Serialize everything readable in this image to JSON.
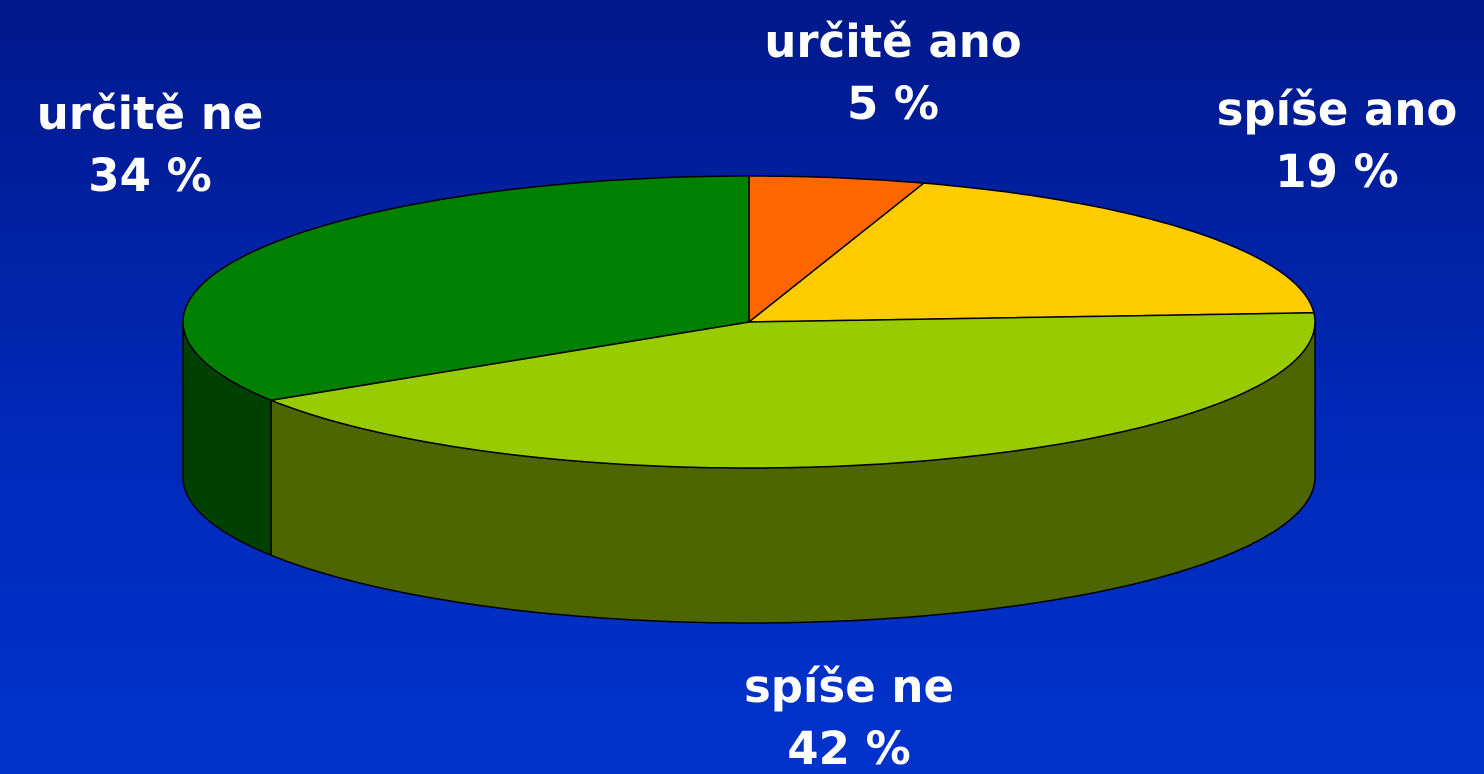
{
  "chart_data": {
    "type": "pie",
    "categories": [
      "určitě ano",
      "spíše ano",
      "spíše ne",
      "určitě ne"
    ],
    "values": [
      5,
      19,
      42,
      34
    ],
    "value_labels": [
      "5 %",
      "19 %",
      "42 %",
      "34 %"
    ],
    "colors": [
      "#ff6600",
      "#ffcc00",
      "#99cc00",
      "#008000"
    ],
    "three_d": true
  }
}
